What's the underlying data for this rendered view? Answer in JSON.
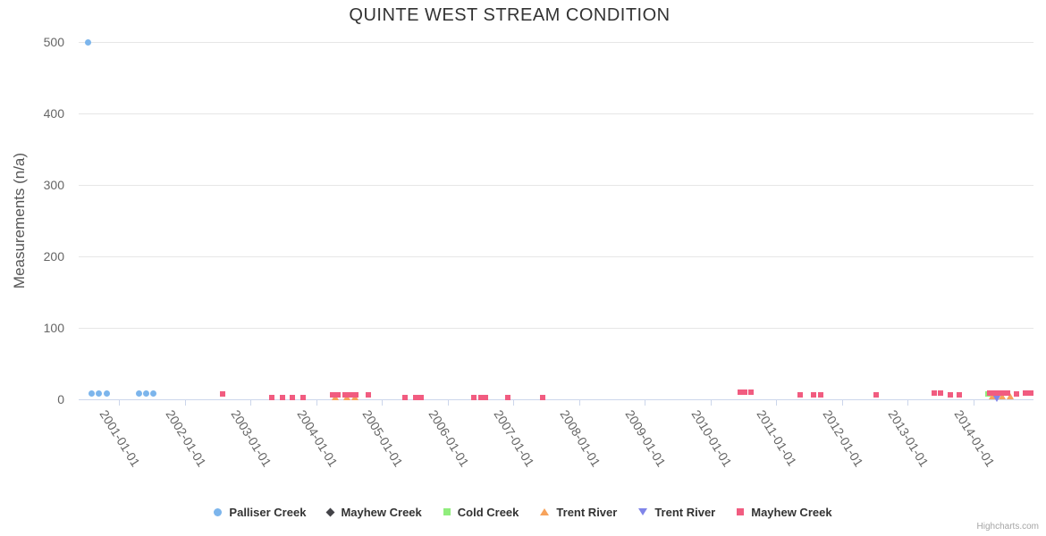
{
  "title": "QUINTE WEST STREAM CONDITION",
  "credits": "Highcharts.com",
  "chart_data": {
    "type": "scatter",
    "title": "QUINTE WEST STREAM CONDITION",
    "xlabel": "",
    "ylabel": "Measurements (n/a)",
    "ylim": [
      0,
      500
    ],
    "y_ticks": [
      0,
      100,
      200,
      300,
      400,
      500
    ],
    "x_tick_labels": [
      "2001-01-01",
      "2002-01-01",
      "2003-01-01",
      "2004-01-01",
      "2005-01-01",
      "2006-01-01",
      "2007-01-01",
      "2008-01-01",
      "2009-01-01",
      "2010-01-01",
      "2011-01-01",
      "2012-01-01",
      "2013-01-01",
      "2014-01-01"
    ],
    "x_tick_years": [
      2001,
      2002,
      2003,
      2004,
      2005,
      2006,
      2007,
      2008,
      2009,
      2010,
      2011,
      2012,
      2013,
      2014
    ],
    "xlim_years": [
      2000.39,
      2014.92
    ],
    "grid": true,
    "legend_position": "bottom",
    "series": [
      {
        "name": "Palliser Creek",
        "color": "#7cb5ec",
        "symbol": "circle",
        "points": [
          [
            2000.53,
            500
          ],
          [
            2000.58,
            8
          ],
          [
            2000.7,
            8
          ],
          [
            2000.81,
            8
          ],
          [
            2001.31,
            8
          ],
          [
            2001.42,
            8
          ],
          [
            2001.53,
            8
          ]
        ]
      },
      {
        "name": "Mayhew Creek",
        "color": "#434348",
        "symbol": "diamond",
        "points": []
      },
      {
        "name": "Cold Creek",
        "color": "#90ed7d",
        "symbol": "square",
        "points": [
          [
            2014.22,
            7
          ]
        ]
      },
      {
        "name": "Trent River",
        "color": "#f7a35c",
        "symbol": "triangle",
        "points": [
          [
            2004.29,
            3
          ],
          [
            2004.47,
            3
          ],
          [
            2004.59,
            3
          ],
          [
            2014.29,
            4
          ],
          [
            2014.44,
            4
          ],
          [
            2014.56,
            4
          ]
        ]
      },
      {
        "name": "Trent River",
        "color": "#8085e9",
        "symbol": "triangle-down",
        "points": [
          [
            2014.36,
            1
          ]
        ]
      },
      {
        "name": "Mayhew Creek",
        "color": "#f15c80",
        "symbol": "square",
        "points": [
          [
            2002.58,
            8
          ],
          [
            2003.33,
            2
          ],
          [
            2003.49,
            2
          ],
          [
            2003.64,
            2
          ],
          [
            2003.8,
            2
          ],
          [
            2004.25,
            6
          ],
          [
            2004.33,
            6
          ],
          [
            2004.44,
            6
          ],
          [
            2004.52,
            6
          ],
          [
            2004.61,
            6
          ],
          [
            2004.8,
            6
          ],
          [
            2005.35,
            2
          ],
          [
            2005.52,
            2
          ],
          [
            2005.6,
            2
          ],
          [
            2006.4,
            2
          ],
          [
            2006.51,
            2
          ],
          [
            2006.58,
            2
          ],
          [
            2006.92,
            2
          ],
          [
            2007.45,
            2
          ],
          [
            2010.46,
            10
          ],
          [
            2010.52,
            10
          ],
          [
            2010.62,
            10
          ],
          [
            2011.37,
            6
          ],
          [
            2011.57,
            6
          ],
          [
            2011.68,
            6
          ],
          [
            2012.52,
            6
          ],
          [
            2013.41,
            9
          ],
          [
            2013.5,
            9
          ],
          [
            2013.65,
            6
          ],
          [
            2013.79,
            6
          ],
          [
            2014.25,
            9
          ],
          [
            2014.32,
            9
          ],
          [
            2014.39,
            9
          ],
          [
            2014.46,
            9
          ],
          [
            2014.52,
            9
          ],
          [
            2014.66,
            8
          ],
          [
            2014.8,
            9
          ],
          [
            2014.88,
            9
          ]
        ]
      }
    ]
  }
}
